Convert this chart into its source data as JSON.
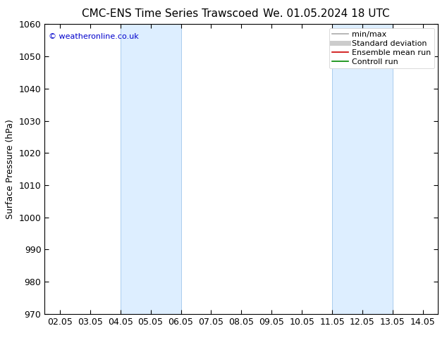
{
  "title": "CMC-ENS Time Series Trawscoed",
  "title2": "We. 01.05.2024 18 UTC",
  "ylabel": "Surface Pressure (hPa)",
  "ylim": [
    970,
    1060
  ],
  "yticks": [
    970,
    980,
    990,
    1000,
    1010,
    1020,
    1030,
    1040,
    1050,
    1060
  ],
  "xtick_labels": [
    "02.05",
    "03.05",
    "04.05",
    "05.05",
    "06.05",
    "07.05",
    "08.05",
    "09.05",
    "10.05",
    "11.05",
    "12.05",
    "13.05",
    "14.05"
  ],
  "xtick_positions": [
    0,
    1,
    2,
    3,
    4,
    5,
    6,
    7,
    8,
    9,
    10,
    11,
    12
  ],
  "xlim": [
    -0.5,
    12.5
  ],
  "shaded_regions": [
    {
      "xmin": 2,
      "xmax": 4,
      "color": "#ddeeff"
    },
    {
      "xmin": 9,
      "xmax": 11,
      "color": "#ddeeff"
    }
  ],
  "shaded_border_color": "#aaccee",
  "watermark": "© weatheronline.co.uk",
  "watermark_color": "#0000cc",
  "background_color": "#ffffff",
  "plot_bg_color": "#ffffff",
  "legend_items": [
    {
      "label": "min/max",
      "color": "#aaaaaa",
      "lw": 1.2,
      "style": "-"
    },
    {
      "label": "Standard deviation",
      "color": "#cccccc",
      "lw": 5,
      "style": "-"
    },
    {
      "label": "Ensemble mean run",
      "color": "#cc0000",
      "lw": 1.2,
      "style": "-"
    },
    {
      "label": "Controll run",
      "color": "#008800",
      "lw": 1.2,
      "style": "-"
    }
  ],
  "title_fontsize": 11,
  "tick_fontsize": 9,
  "ylabel_fontsize": 9
}
